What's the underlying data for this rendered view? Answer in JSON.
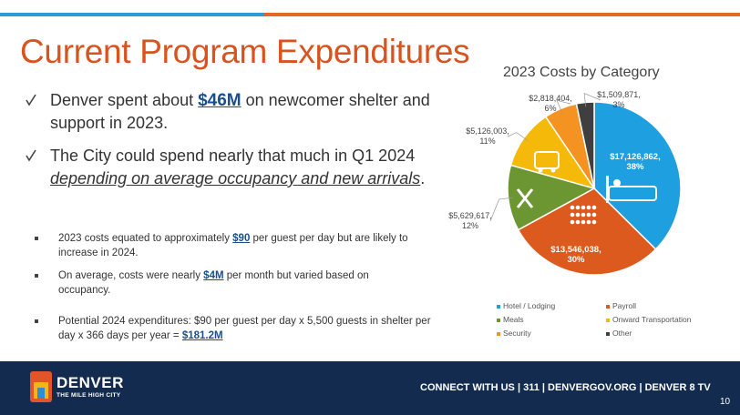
{
  "slide": {
    "title": "Current Program Expenditures",
    "bullets": [
      [
        "Denver spent about ",
        "$46M",
        " on newcomer shelter and support in 2023."
      ],
      [
        "The City could spend nearly that much in Q1 2024 ",
        "depending on average occupancy and new arrivals",
        "."
      ]
    ],
    "sub_bullets": [
      [
        "2023 costs equated to approximately ",
        "$90",
        " per guest per day but are likely to increase in 2024."
      ],
      [
        "On average, costs were nearly ",
        "$4M",
        " per month but varied based on occupancy."
      ],
      [
        "Potential 2024 expenditures: $90 per guest per day x 5,500 guests in shelter per day x 366 days per year = ",
        "$181.2M"
      ]
    ]
  },
  "chart_data": {
    "type": "pie",
    "title": "2023 Costs by Category",
    "categories": [
      "Hotel / Lodging",
      "Payroll",
      "Meals",
      "Onward Transportation",
      "Security",
      "Other"
    ],
    "values": [
      17126862,
      13546038,
      5629617,
      5126003,
      2818404,
      1509871
    ],
    "value_labels": [
      "$17,126,862,\n38%",
      "$13,546,038,\n30%",
      "$5,629,617,\n12%",
      "$5,126,003,\n11%",
      "$2,818,404,\n6%",
      "$1,509,871,\n3%"
    ],
    "colors": [
      "#1ea0e0",
      "#dd5a1e",
      "#6b9632",
      "#f5b90a",
      "#f59322",
      "#3f3f3f"
    ]
  },
  "footer": {
    "brand": "DENVER",
    "tagline": "THE MILE HIGH CITY",
    "contact": "CONNECT WITH US | 311 | DENVERGOV.ORG | DENVER 8 TV",
    "page": "10"
  }
}
